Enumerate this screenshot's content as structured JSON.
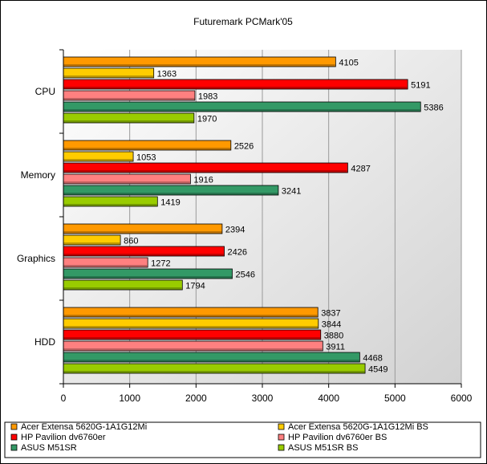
{
  "chart_data": {
    "type": "bar",
    "orientation": "horizontal",
    "title": "Futuremark PCMark'05",
    "categories": [
      "CPU",
      "Memory",
      "Graphics",
      "HDD"
    ],
    "xlim": [
      0,
      6000
    ],
    "xticks": [
      0,
      1000,
      2000,
      3000,
      4000,
      5000,
      6000
    ],
    "xtick_labels": [
      "0",
      "1000",
      "2000",
      "3000",
      "4000",
      "5000",
      "6000"
    ],
    "grid": true,
    "legend_position": "bottom",
    "series": [
      {
        "name": "Acer Extensa 5620G-1A1G12Mi",
        "color": "#ff9900",
        "values": [
          4105,
          2526,
          2394,
          3837
        ]
      },
      {
        "name": "Acer Extensa 5620G-1A1G12Mi BS",
        "color": "#ffcc00",
        "values": [
          1363,
          1053,
          860,
          3844
        ]
      },
      {
        "name": "HP Pavilion dv6760er",
        "color": "#ff0000",
        "values": [
          5191,
          4287,
          2426,
          3880
        ]
      },
      {
        "name": "HP Pavilion dv6760er BS",
        "color": "#ff8080",
        "values": [
          1983,
          1916,
          1272,
          3911
        ]
      },
      {
        "name": "ASUS M51SR",
        "color": "#339966",
        "values": [
          5386,
          3241,
          2546,
          4468
        ]
      },
      {
        "name": "ASUS M51SR BS",
        "color": "#99cc00",
        "values": [
          1970,
          1419,
          1794,
          4549
        ]
      }
    ]
  }
}
